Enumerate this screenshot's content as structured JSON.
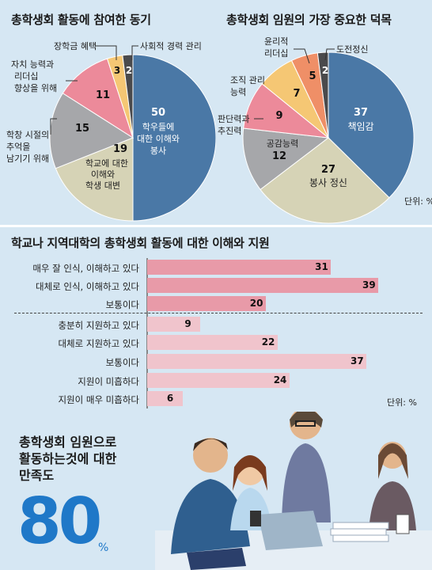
{
  "charts": {
    "motivation": {
      "title": "총학생회 활동에 참여한 동기",
      "chart_data": {
        "type": "pie",
        "title": "총학생회 활동에 참여한 동기",
        "slices": [
          {
            "label": "학우들에 대한 이해와 봉사",
            "value": 50,
            "color": "#4a78a6"
          },
          {
            "label": "학교에 대한 이해와 학생 대변",
            "value": 19,
            "color": "#d6d3b6"
          },
          {
            "label": "학창 시절의 추억을 남기기 위해",
            "value": 15,
            "color": "#a6a7aa"
          },
          {
            "label": "자치 능력과 리더십 향상을 위해",
            "value": 11,
            "color": "#ec8a9a"
          },
          {
            "label": "장학금 혜택",
            "value": 3,
            "color": "#f5c774"
          },
          {
            "label": "사회적 경력 관리",
            "value": 2,
            "color": "#4a4a4c"
          }
        ]
      }
    },
    "virtue": {
      "title": "총학생회 임원의 가장 중요한 덕목",
      "unit": "단위: %",
      "chart_data": {
        "type": "pie",
        "title": "총학생회 임원의 가장 중요한 덕목",
        "slices": [
          {
            "label": "책임감",
            "value": 37,
            "color": "#4a78a6"
          },
          {
            "label": "봉사 정신",
            "value": 27,
            "color": "#d6d3b6"
          },
          {
            "label": "공감능력",
            "value": 12,
            "color": "#a6a7aa"
          },
          {
            "label": "판단력과 추진력",
            "value": 9,
            "color": "#ec8a9a"
          },
          {
            "label": "조직 관리 능력",
            "value": 7,
            "color": "#f5c774"
          },
          {
            "label": "윤리적 리더십",
            "value": 5,
            "color": "#ef8f67"
          },
          {
            "label": "도전정신",
            "value": 2,
            "color": "#4a4a4c"
          }
        ]
      }
    },
    "support": {
      "title": "학교나 지역대학의 총학생회 활동에 대한 이해와 지원",
      "unit": "단위: %",
      "chart_data": {
        "type": "bar",
        "orientation": "horizontal",
        "title": "학교나 지역대학의 총학생회 활동에 대한 이해와 지원",
        "xlim": [
          0,
          45
        ],
        "groups": [
          {
            "color": "#e89aa8",
            "categories": [
              "매우 잘 인식, 이해하고 있다",
              "대체로 인식, 이해하고 있다",
              "보통이다"
            ],
            "values": [
              31,
              39,
              20
            ]
          },
          {
            "color": "#f0c4cc",
            "categories": [
              "충분히 지원하고 있다",
              "대체로 지원하고 있다",
              "보통이다",
              "지원이 미흡하다",
              "지원이 매우 미흡하다"
            ],
            "values": [
              9,
              22,
              37,
              24,
              6
            ]
          }
        ]
      }
    }
  },
  "satisfaction": {
    "line1": "총학생회 임원으로",
    "line2": "활동하는것에 대한",
    "line3": "만족도",
    "value": "80",
    "unit": "%"
  }
}
